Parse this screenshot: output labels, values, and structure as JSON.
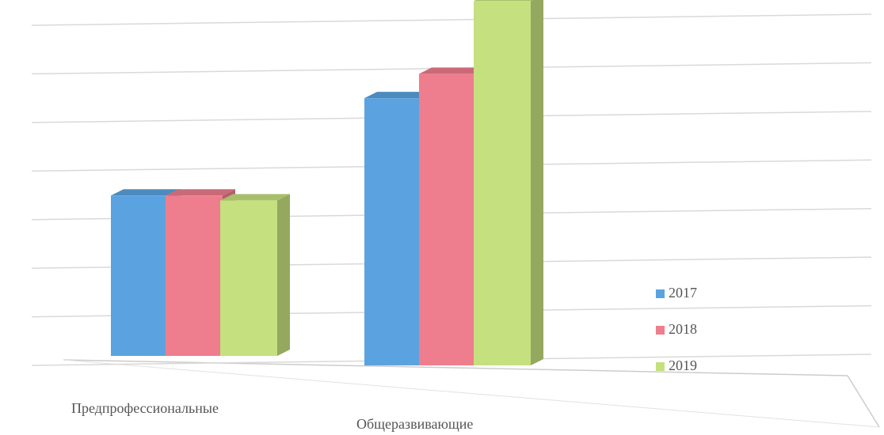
{
  "chart_data": {
    "type": "bar3d",
    "categories": [
      "Предпрофессиональные",
      "Общеразвивающие"
    ],
    "series": [
      {
        "name": "2017",
        "color": "#5ba3e0",
        "values": [
          3.3,
          5.5
        ]
      },
      {
        "name": "2018",
        "color": "#ee7d8e",
        "values": [
          3.3,
          6.0
        ]
      },
      {
        "name": "2019",
        "color": "#c5e07e",
        "values": [
          3.2,
          7.5
        ]
      }
    ],
    "ylim": [
      0,
      7
    ],
    "yticks": [
      0,
      1,
      2,
      3,
      4,
      5,
      6,
      7
    ],
    "grid": true,
    "legend": "right"
  }
}
